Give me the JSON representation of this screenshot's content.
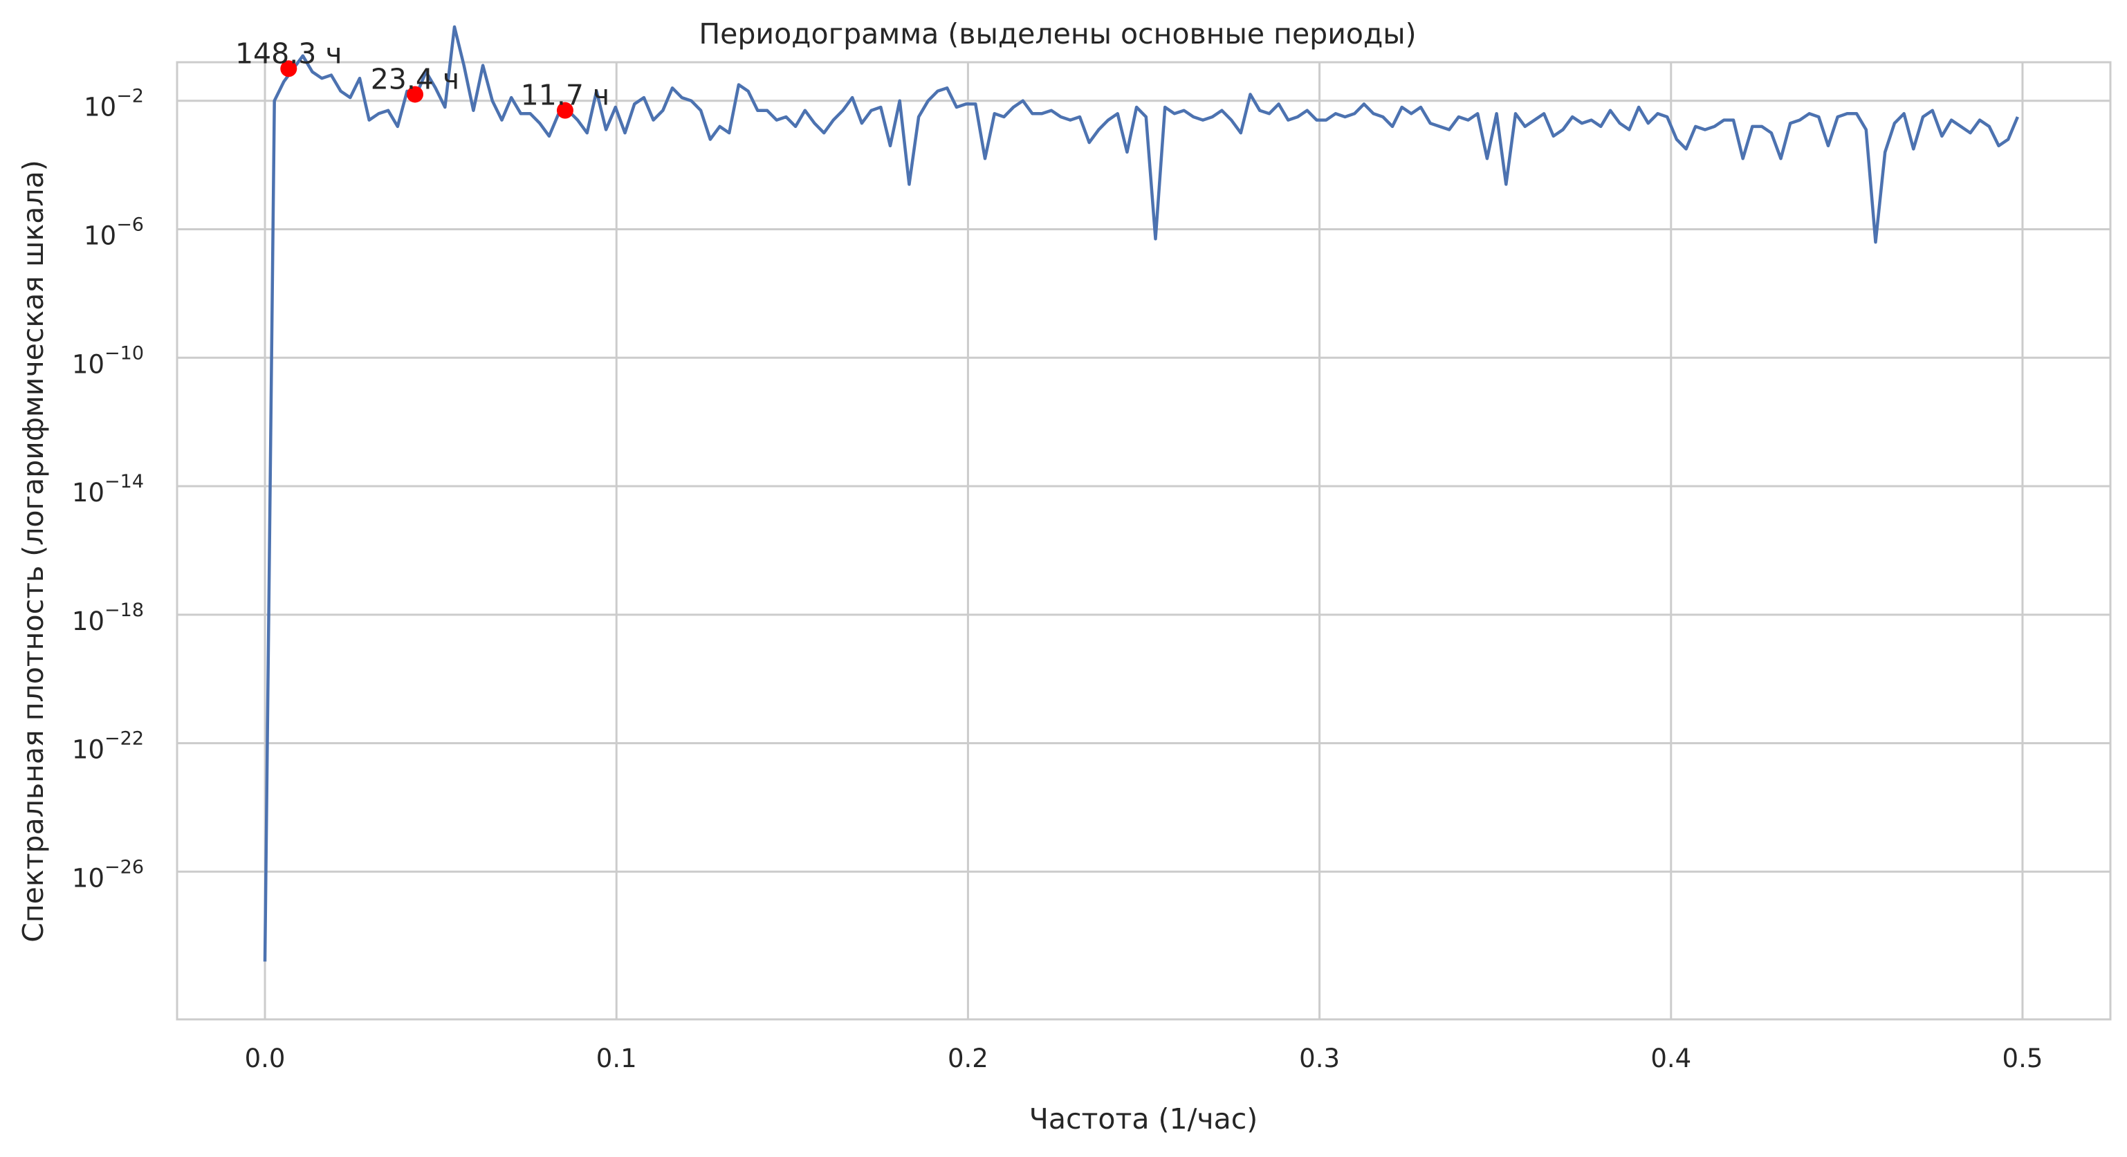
{
  "chart_data": {
    "type": "line",
    "title": "Периодограмма (выделены основные периоды)",
    "xlabel": "Частота (1/час)",
    "ylabel": "Спектральная плотность (логарифмическая шкала)",
    "x_scale": "linear",
    "y_scale": "log",
    "xlim": [
      -0.025,
      0.525
    ],
    "ylim_exponent": [
      -30.6,
      -0.8
    ],
    "grid": true,
    "x_ticks": [
      {
        "value": 0.0,
        "label": "0.0"
      },
      {
        "value": 0.1,
        "label": "0.1"
      },
      {
        "value": 0.2,
        "label": "0.2"
      },
      {
        "value": 0.3,
        "label": "0.3"
      },
      {
        "value": 0.4,
        "label": "0.4"
      },
      {
        "value": 0.5,
        "label": "0.5"
      }
    ],
    "y_ticks": [
      {
        "exponent": -2,
        "base": "10",
        "sup": "−2"
      },
      {
        "exponent": -6,
        "base": "10",
        "sup": "−6"
      },
      {
        "exponent": -10,
        "base": "10",
        "sup": "−10"
      },
      {
        "exponent": -14,
        "base": "10",
        "sup": "−14"
      },
      {
        "exponent": -18,
        "base": "10",
        "sup": "−18"
      },
      {
        "exponent": -22,
        "base": "10",
        "sup": "−22"
      },
      {
        "exponent": -26,
        "base": "10",
        "sup": "−26"
      }
    ],
    "line_color": "#4c72b0",
    "peak_color": "#ff0000",
    "series": [
      {
        "x": [
          0.0,
          0.002695,
          0.00539,
          0.008086,
          0.010781,
          0.013476,
          0.016171,
          0.018867,
          0.021562,
          0.024257,
          0.026952,
          0.029647,
          0.032343,
          0.035038,
          0.037733,
          0.040428,
          0.043124,
          0.045819,
          0.048514,
          0.051209,
          0.053905,
          0.0566,
          0.059295,
          0.06199,
          0.064686,
          0.067381,
          0.070076,
          0.072771,
          0.075467,
          0.078162,
          0.080857,
          0.083552,
          0.086248,
          0.088943,
          0.091638,
          0.094333,
          0.097028,
          0.099724,
          0.102419,
          0.105114,
          0.107809,
          0.110505,
          0.1132,
          0.115895,
          0.11859,
          0.121286,
          0.123981,
          0.126676,
          0.129371,
          0.132067,
          0.134762,
          0.137457,
          0.140152,
          0.142848,
          0.145543,
          0.148238,
          0.150933,
          0.153629,
          0.156324,
          0.159019,
          0.161714,
          0.164409,
          0.167105,
          0.1698,
          0.172495,
          0.17519,
          0.177886,
          0.180581,
          0.183276,
          0.185971,
          0.188667,
          0.191362,
          0.194057,
          0.196752,
          0.199448,
          0.202143,
          0.204838,
          0.207533,
          0.210229,
          0.212924,
          0.215619,
          0.218314,
          0.22101,
          0.223705,
          0.2264,
          0.229095,
          0.23179,
          0.234486,
          0.237181,
          0.239876,
          0.242571,
          0.245267,
          0.247962,
          0.250657,
          0.253352,
          0.256048,
          0.258743,
          0.261438,
          0.264133,
          0.266829,
          0.269524,
          0.272219,
          0.274914,
          0.27761,
          0.280305,
          0.283,
          0.285695,
          0.28839,
          0.291086,
          0.293781,
          0.296476,
          0.299171,
          0.301867,
          0.304562,
          0.307257,
          0.309952,
          0.312648,
          0.315343,
          0.318038,
          0.320733,
          0.323429,
          0.326124,
          0.328819,
          0.331514,
          0.33421,
          0.336905,
          0.3396,
          0.342295,
          0.344991,
          0.347686,
          0.350381,
          0.353076,
          0.355771,
          0.358467,
          0.361162,
          0.363857,
          0.366552,
          0.369248,
          0.371943,
          0.374638,
          0.377333,
          0.380029,
          0.382724,
          0.385419,
          0.388114,
          0.39081,
          0.393505,
          0.3962,
          0.398895,
          0.401591,
          0.404286,
          0.406981,
          0.409676,
          0.412371,
          0.415067,
          0.417762,
          0.420457,
          0.423152,
          0.425848,
          0.428543,
          0.431238,
          0.433933,
          0.436629,
          0.439324,
          0.442019,
          0.444714,
          0.44741,
          0.450105,
          0.4528,
          0.455495,
          0.458191,
          0.460886,
          0.463581,
          0.466276,
          0.468972,
          0.471667,
          0.474362,
          0.477057,
          0.479752,
          0.482448,
          0.485143,
          0.487838,
          0.490533,
          0.493229,
          0.495924,
          0.498619
        ],
        "log10_y": [
          -28.8,
          -2.0,
          -1.4,
          -1.0,
          -0.6,
          -1.1,
          -1.3,
          -1.2,
          -1.7,
          -1.9,
          -1.3,
          -2.6,
          -2.4,
          -2.3,
          -2.8,
          -1.7,
          -1.8,
          -1.1,
          -1.6,
          -2.2,
          0.3,
          -0.9,
          -2.3,
          -0.9,
          -2.0,
          -2.6,
          -1.9,
          -2.4,
          -2.4,
          -2.7,
          -3.1,
          -2.4,
          -2.3,
          -2.6,
          -3.0,
          -1.7,
          -2.9,
          -2.2,
          -3.0,
          -2.1,
          -1.9,
          -2.6,
          -2.3,
          -1.6,
          -1.9,
          -2.0,
          -2.3,
          -3.2,
          -2.8,
          -3.0,
          -1.5,
          -1.7,
          -2.3,
          -2.3,
          -2.6,
          -2.5,
          -2.8,
          -2.3,
          -2.7,
          -3.0,
          -2.6,
          -2.3,
          -1.9,
          -2.7,
          -2.3,
          -2.2,
          -3.4,
          -2.0,
          -4.6,
          -2.5,
          -2.0,
          -1.7,
          -1.6,
          -2.2,
          -2.1,
          -2.1,
          -3.8,
          -2.4,
          -2.5,
          -2.2,
          -2.0,
          -2.4,
          -2.4,
          -2.3,
          -2.5,
          -2.6,
          -2.5,
          -3.3,
          -2.9,
          -2.6,
          -2.4,
          -3.6,
          -2.2,
          -2.5,
          -6.3,
          -2.2,
          -2.4,
          -2.3,
          -2.5,
          -2.6,
          -2.5,
          -2.3,
          -2.6,
          -3.0,
          -1.8,
          -2.3,
          -2.4,
          -2.1,
          -2.6,
          -2.5,
          -2.3,
          -2.6,
          -2.6,
          -2.4,
          -2.5,
          -2.4,
          -2.1,
          -2.4,
          -2.5,
          -2.8,
          -2.2,
          -2.4,
          -2.2,
          -2.7,
          -2.8,
          -2.9,
          -2.5,
          -2.6,
          -2.4,
          -3.8,
          -2.4,
          -4.6,
          -2.4,
          -2.8,
          -2.6,
          -2.4,
          -3.1,
          -2.9,
          -2.5,
          -2.7,
          -2.6,
          -2.8,
          -2.3,
          -2.7,
          -2.9,
          -2.2,
          -2.7,
          -2.4,
          -2.5,
          -3.2,
          -3.5,
          -2.8,
          -2.9,
          -2.8,
          -2.6,
          -2.6,
          -3.8,
          -2.8,
          -2.8,
          -3.0,
          -3.8,
          -2.7,
          -2.6,
          -2.4,
          -2.5,
          -3.4,
          -2.5,
          -2.4,
          -2.4,
          -2.9,
          -6.4,
          -3.6,
          -2.7,
          -2.4,
          -3.5,
          -2.5,
          -2.3,
          -3.1,
          -2.6,
          -2.8,
          -3.0,
          -2.6,
          -2.8,
          -3.4,
          -3.2,
          -2.5
        ],
        "highlight_override": "see peaks"
      }
    ],
    "peaks": [
      {
        "x": 0.006739,
        "label": "148.3 ч"
      },
      {
        "x": 0.042691,
        "label": "23.4 ч"
      },
      {
        "x": 0.085382,
        "label": "11.7 ч"
      }
    ]
  }
}
